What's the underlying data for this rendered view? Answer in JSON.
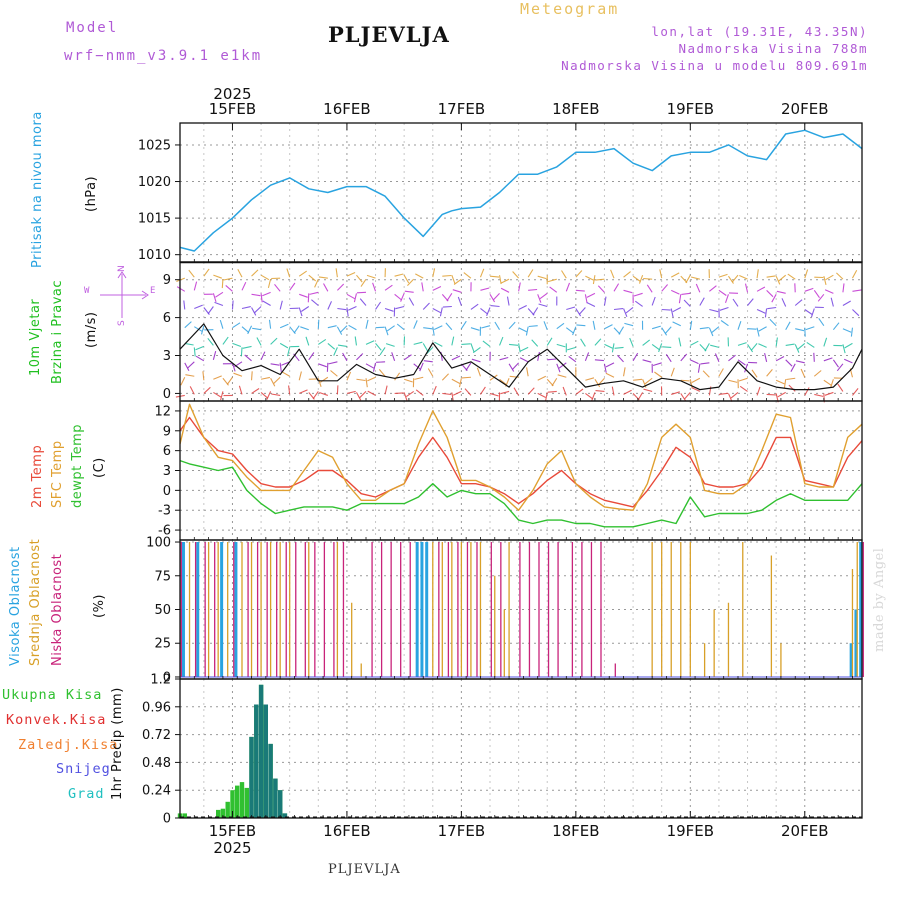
{
  "header": {
    "model_label": "Model",
    "model_name": "wrf−nmm_v3.9.1  e1km",
    "station": "PLJEVLJA",
    "product": "Meteogram",
    "coords": "lon,lat (19.31E, 43.35N)",
    "altitude": "Nadmorska Visina 788m",
    "model_altitude": "Nadmorska Visina u modelu 809.691m"
  },
  "footer": {
    "station": "PLJEVLJA",
    "credit": "made by Angel"
  },
  "time_axis": {
    "year": "2025",
    "days": [
      "15FEB",
      "16FEB",
      "17FEB",
      "18FEB",
      "19FEB",
      "20FEB"
    ],
    "start_hour": 13,
    "end_hour": 156
  },
  "colors": {
    "pressure": "#29a3e0",
    "wind_axis": "#20c020",
    "wind_units": "#c060e0",
    "t2m": "#e84a3a",
    "sfc": "#e0a030",
    "dewpt": "#30c030",
    "high": "#29a3e0",
    "mid": "#d8a028",
    "low": "#c8237a",
    "total": "#30c030",
    "conv": "#e03030",
    "frz": "#f08030",
    "snow": "#5050e0",
    "grad": "#20c0c0",
    "precip_bar": "#1a7a78"
  },
  "panels": {
    "pressure": {
      "label": "Pritisak na nivou mora",
      "units": "(hPa)",
      "yticks": [
        "1010",
        "1015",
        "1020",
        "1025"
      ]
    },
    "wind": {
      "label1": "10m Vjetar",
      "label2": "Brzina i Pravac",
      "units": "(m/s)",
      "compass_n": "N",
      "compass_e": "E",
      "compass_w": "W",
      "compass_s": "S",
      "yticks": [
        "0",
        "3",
        "6",
        "9"
      ]
    },
    "temp": {
      "label_t2m": "2m Temp",
      "label_sfc": "SFC Temp",
      "label_dew": "dewpt Temp",
      "units": "(C)",
      "yticks": [
        "-6",
        "-3",
        "0",
        "3",
        "6",
        "9",
        "12"
      ]
    },
    "cloud": {
      "label_high": "Visoka Oblacnost",
      "label_mid": "Srednja Oblacnost",
      "label_low": "Niska Oblacnost",
      "units": "(%)",
      "yticks": [
        "0",
        "25",
        "50",
        "75",
        "100"
      ]
    },
    "precip": {
      "legend": [
        "Ukupna Kisa",
        "Konvek.Kisa",
        "Zaledj.Kisa",
        "Snijeg",
        "Grad"
      ],
      "units": "1hr Precip (mm)",
      "yticks": [
        "0",
        "0.24",
        "0.48",
        "0.72",
        "0.96",
        "1.2"
      ]
    }
  },
  "chart_data": [
    {
      "type": "line",
      "title": "Pritisak na nivou mora",
      "ylabel": "(hPa)",
      "ylim": [
        1009,
        1028
      ],
      "x": [
        13,
        16,
        20,
        24,
        28,
        32,
        36,
        40,
        44,
        48,
        52,
        56,
        60,
        64,
        68,
        70,
        72,
        76,
        80,
        84,
        88,
        92,
        96,
        100,
        104,
        108,
        112,
        116,
        120,
        124,
        128,
        132,
        136,
        140,
        144,
        148,
        152,
        156
      ],
      "values": [
        1011,
        1010.5,
        1013,
        1015,
        1017.5,
        1019.5,
        1020.5,
        1019,
        1018.5,
        1019.3,
        1019.3,
        1018,
        1015,
        1012.5,
        1015.5,
        1016,
        1016.3,
        1016.5,
        1018.5,
        1021,
        1021,
        1022,
        1024,
        1024,
        1024.5,
        1022.5,
        1021.5,
        1023.5,
        1024,
        1024,
        1025,
        1023.5,
        1023,
        1026.5,
        1027,
        1026,
        1026.5,
        1024.5
      ],
      "grid": true
    },
    {
      "type": "line",
      "title": "10m Vjetar Brzina i Pravac",
      "ylabel": "(m/s)",
      "ylim": [
        -0.6,
        10.4
      ],
      "x": [
        13,
        18,
        22,
        26,
        30,
        34,
        38,
        42,
        46,
        50,
        54,
        58,
        62,
        66,
        70,
        74,
        78,
        82,
        86,
        90,
        94,
        98,
        102,
        106,
        110,
        114,
        118,
        122,
        126,
        130,
        134,
        138,
        142,
        146,
        150,
        154,
        156
      ],
      "values": [
        3.5,
        5.5,
        3,
        1.8,
        2.2,
        1.5,
        3.5,
        1,
        1,
        2.3,
        1.5,
        1.2,
        1.5,
        4,
        2,
        2.5,
        1.5,
        0.5,
        2.5,
        3.5,
        2,
        0.5,
        0.8,
        1,
        0.5,
        1.2,
        1,
        0.3,
        0.5,
        2.5,
        1,
        0.5,
        0.3,
        0.3,
        0.5,
        2,
        3.5
      ],
      "grid": true
    },
    {
      "type": "line",
      "title": "2m Temp / SFC Temp / dewpt Temp",
      "ylabel": "(C)",
      "ylim": [
        -7.5,
        13.5
      ],
      "x": [
        13,
        15,
        18,
        21,
        24,
        27,
        30,
        33,
        36,
        39,
        42,
        45,
        48,
        51,
        54,
        57,
        60,
        63,
        66,
        69,
        72,
        75,
        78,
        81,
        84,
        87,
        90,
        93,
        96,
        99,
        102,
        105,
        108,
        111,
        114,
        117,
        120,
        123,
        126,
        129,
        132,
        135,
        138,
        141,
        144,
        147,
        150,
        153,
        156
      ],
      "series": [
        {
          "name": "2m Temp",
          "values": [
            9,
            11,
            8,
            6,
            5.5,
            3,
            1,
            0.5,
            0.5,
            1.5,
            3,
            3,
            1.5,
            -0.5,
            -1,
            0,
            1,
            5,
            8,
            5,
            1,
            1,
            0.5,
            -0.5,
            -2,
            -0.5,
            1.5,
            3,
            1,
            -0.5,
            -1.5,
            -2,
            -2.5,
            0,
            3,
            6.5,
            5,
            1,
            0.5,
            0.5,
            1,
            3.5,
            8,
            8,
            1.5,
            1,
            0.5,
            5,
            7.5
          ]
        },
        {
          "name": "SFC Temp",
          "values": [
            7,
            13,
            8,
            5,
            4.5,
            2,
            0,
            0,
            0,
            3,
            6,
            5,
            1,
            -1.5,
            -1.5,
            0,
            1,
            7,
            12,
            8,
            1.5,
            1.5,
            0.5,
            -1,
            -3,
            0,
            4,
            6,
            1,
            -1,
            -2.5,
            -2.8,
            -3,
            1,
            8,
            10,
            8,
            0,
            -0.5,
            -0.5,
            1,
            6,
            11.5,
            11,
            1,
            0.5,
            0.5,
            8,
            10
          ]
        },
        {
          "name": "dewpt Temp",
          "values": [
            4.5,
            4,
            3.5,
            3,
            3.5,
            0,
            -2,
            -3.5,
            -3,
            -2.5,
            -2.5,
            -2.5,
            -3,
            -2,
            -2,
            -2,
            -2,
            -1,
            1,
            -1,
            0,
            -0.5,
            -0.5,
            -2,
            -4.5,
            -5,
            -4.5,
            -4.5,
            -5,
            -5,
            -5.5,
            -5.5,
            -5.5,
            -5,
            -4.5,
            -5,
            -1,
            -4,
            -3.5,
            -3.5,
            -3.5,
            -3,
            -1.5,
            -0.5,
            -1.5,
            -1.5,
            -1.5,
            -1.5,
            1
          ]
        }
      ],
      "grid": true
    },
    {
      "type": "bar",
      "title": "Oblacnost",
      "ylabel": "(%)",
      "ylim": [
        0,
        100
      ],
      "series": [
        {
          "name": "Visoka Oblacnost",
          "x": [
            14,
            17,
            22,
            25,
            63,
            64,
            65,
            154,
            155,
            156
          ],
          "values": [
            100,
            100,
            100,
            100,
            100,
            100,
            100,
            25,
            50,
            100
          ]
        },
        {
          "name": "Srednja Oblacnost",
          "x": [
            15,
            19,
            21,
            23,
            26,
            28,
            30,
            32,
            34,
            36,
            40,
            46,
            49,
            51,
            66,
            68,
            70,
            72,
            74,
            76,
            79,
            81,
            82,
            112,
            114,
            116,
            118,
            120,
            123,
            125,
            128,
            131,
            137,
            139,
            154,
            155
          ],
          "values": [
            100,
            100,
            100,
            100,
            100,
            100,
            100,
            100,
            100,
            100,
            100,
            100,
            55,
            10,
            100,
            100,
            100,
            100,
            100,
            100,
            75,
            50,
            100,
            100,
            100,
            100,
            100,
            100,
            25,
            50,
            55,
            100,
            90,
            25,
            80,
            100
          ]
        },
        {
          "name": "Niska Oblacnost",
          "x": [
            13,
            16,
            18,
            20,
            24,
            27,
            29,
            31,
            33,
            35,
            37,
            39,
            41,
            43,
            45,
            47,
            53,
            55,
            57,
            59,
            61,
            67,
            69,
            71,
            73,
            75,
            78,
            80,
            84,
            86,
            88,
            90,
            92,
            95,
            97,
            99,
            101,
            104,
            156
          ],
          "values": [
            100,
            100,
            100,
            100,
            100,
            100,
            100,
            100,
            100,
            100,
            100,
            100,
            100,
            100,
            100,
            100,
            100,
            100,
            100,
            100,
            100,
            100,
            100,
            100,
            100,
            100,
            100,
            100,
            100,
            100,
            100,
            100,
            100,
            100,
            100,
            100,
            100,
            10,
            100
          ]
        }
      ],
      "grid": true
    },
    {
      "type": "bar",
      "title": "1hr Precip",
      "ylabel": "1hr Precip (mm)",
      "ylim": [
        0,
        1.2
      ],
      "series": [
        {
          "name": "Ukupna Kisa",
          "x": [
            13,
            14,
            21,
            22,
            23,
            24,
            25,
            26,
            27,
            28,
            29,
            30,
            31,
            32,
            33,
            34,
            35
          ],
          "values": [
            0.04,
            0.04,
            0.07,
            0.08,
            0.14,
            0.24,
            0.28,
            0.31,
            0.26,
            0.7,
            0.98,
            1.15,
            0.98,
            0.64,
            0.34,
            0.24,
            0.04
          ]
        },
        {
          "name": "Grad",
          "x": [
            28,
            29,
            30,
            31,
            32,
            33,
            34,
            35
          ],
          "values": [
            0.7,
            0.98,
            1.15,
            0.98,
            0.64,
            0.34,
            0.24,
            0.04
          ]
        }
      ],
      "grid": true
    }
  ]
}
